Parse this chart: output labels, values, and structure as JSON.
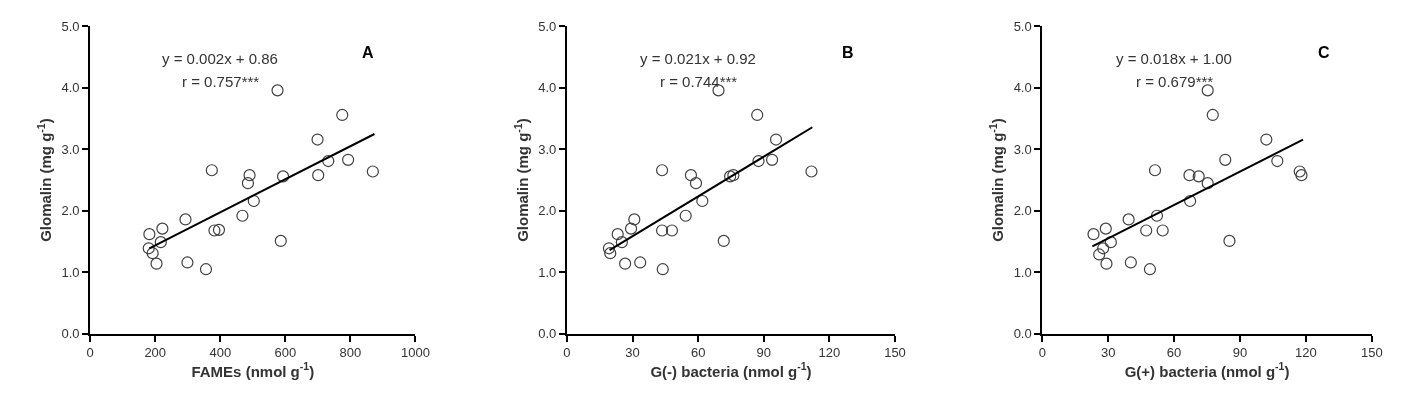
{
  "chart_data": [
    {
      "type": "scatter",
      "title": "A",
      "annotations": [
        "y = 0.002x + 0.86",
        "r = 0.757***"
      ],
      "xlabel": "FAMEs (nmol g$^{-1}$)",
      "ylabel": "Glomalin (mg g$^{-1}$)",
      "xlim": [
        0,
        1000
      ],
      "xticks": [
        0,
        200,
        400,
        600,
        800,
        1000
      ],
      "ylim": [
        0,
        5
      ],
      "yticks": [
        {
          "value": 0,
          "label": "0.0"
        },
        {
          "value": 1,
          "label": "1.0"
        },
        {
          "value": 2,
          "label": "2.0"
        },
        {
          "value": 3,
          "label": "3.0"
        },
        {
          "value": 4,
          "label": "4.0"
        },
        {
          "value": 5,
          "label": "5.0"
        }
      ],
      "grid": false,
      "marker": "circle",
      "series": [
        {
          "color": "#404040",
          "x": [
            182,
            180,
            192,
            204,
            217,
            222,
            293,
            299,
            356,
            374,
            382,
            396,
            468,
            485,
            490,
            503,
            576,
            586,
            593,
            699,
            701,
            732,
            775,
            793,
            869
          ],
          "values": [
            1.62,
            1.39,
            1.31,
            1.14,
            1.49,
            1.71,
            1.86,
            1.16,
            1.05,
            2.66,
            1.68,
            1.69,
            1.92,
            2.45,
            2.58,
            2.16,
            3.96,
            1.51,
            2.56,
            3.16,
            2.58,
            2.81,
            3.56,
            2.83,
            2.64
          ]
        },
        {
          "type": "line",
          "marker": "none",
          "color": "#000000",
          "x": [
            182,
            874
          ],
          "values": [
            1.39,
            3.25
          ]
        }
      ]
    },
    {
      "type": "scatter",
      "title": "B",
      "annotations": [
        "y = 0.021x + 0.92",
        "r = 0.744***"
      ],
      "xlabel": "G(-) bacteria (nmol g$^{-1}$)",
      "ylabel": "Glomalin (mg g$^{-1}$)",
      "xlim": [
        0,
        150
      ],
      "xticks": [
        0,
        30,
        60,
        90,
        120,
        150
      ],
      "ylim": [
        0,
        5
      ],
      "yticks": [
        {
          "value": 0,
          "label": "0.0"
        },
        {
          "value": 1,
          "label": "1.0"
        },
        {
          "value": 2,
          "label": "2.0"
        },
        {
          "value": 3,
          "label": "3.0"
        },
        {
          "value": 4,
          "label": "4.0"
        },
        {
          "value": 5,
          "label": "5.0"
        }
      ],
      "grid": false,
      "marker": "circle",
      "series": [
        {
          "color": "#404040",
          "x": [
            19.2,
            19.8,
            23.2,
            25.1,
            26.6,
            29.3,
            30.8,
            33.5,
            43.5,
            43.8,
            43.5,
            48.0,
            54.3,
            56.7,
            59.0,
            61.9,
            69.3,
            71.7,
            74.6,
            76.1,
            87.6,
            87.0,
            93.8,
            95.6,
            111.8
          ],
          "values": [
            1.39,
            1.31,
            1.62,
            1.49,
            1.14,
            1.71,
            1.86,
            1.16,
            2.66,
            1.05,
            1.68,
            1.68,
            1.92,
            2.58,
            2.45,
            2.16,
            3.96,
            1.51,
            2.56,
            2.58,
            2.81,
            3.56,
            2.83,
            3.16,
            2.64
          ]
        },
        {
          "type": "line",
          "marker": "none",
          "color": "#000000",
          "x": [
            19.5,
            112.2
          ],
          "values": [
            1.36,
            3.36
          ]
        }
      ]
    },
    {
      "type": "scatter",
      "title": "C",
      "annotations": [
        "y = 0.018x + 1.00",
        "r = 0.679***"
      ],
      "xlabel": "G(+) bacteria (nmol g$^{-1}$)",
      "ylabel": "Glomalin (mg g$^{-1}$)",
      "xlim": [
        0,
        150
      ],
      "xticks": [
        0,
        30,
        60,
        90,
        120,
        150
      ],
      "ylim": [
        0,
        5
      ],
      "yticks": [
        {
          "value": 0,
          "label": "0.0"
        },
        {
          "value": 1,
          "label": "1.0"
        },
        {
          "value": 2,
          "label": "2.0"
        },
        {
          "value": 3,
          "label": "3.0"
        },
        {
          "value": 4,
          "label": "4.0"
        },
        {
          "value": 5,
          "label": "5.0"
        }
      ],
      "grid": false,
      "marker": "circle",
      "series": [
        {
          "color": "#404040",
          "x": [
            23.3,
            25.9,
            27.7,
            28.9,
            29.2,
            31.2,
            39.3,
            40.3,
            47.3,
            49.0,
            51.3,
            52.2,
            54.8,
            67.0,
            67.3,
            71.2,
            75.3,
            75.3,
            77.6,
            83.3,
            85.2,
            102.0,
            107.0,
            117.2,
            118.0
          ],
          "values": [
            1.62,
            1.29,
            1.39,
            1.71,
            1.14,
            1.49,
            1.86,
            1.16,
            1.68,
            1.05,
            2.66,
            1.92,
            1.68,
            2.58,
            2.16,
            2.56,
            2.45,
            3.96,
            3.56,
            2.83,
            1.51,
            3.16,
            2.81,
            2.64,
            2.58
          ]
        },
        {
          "type": "line",
          "marker": "none",
          "color": "#000000",
          "x": [
            22.8,
            118.7
          ],
          "values": [
            1.42,
            3.16
          ]
        }
      ]
    }
  ]
}
